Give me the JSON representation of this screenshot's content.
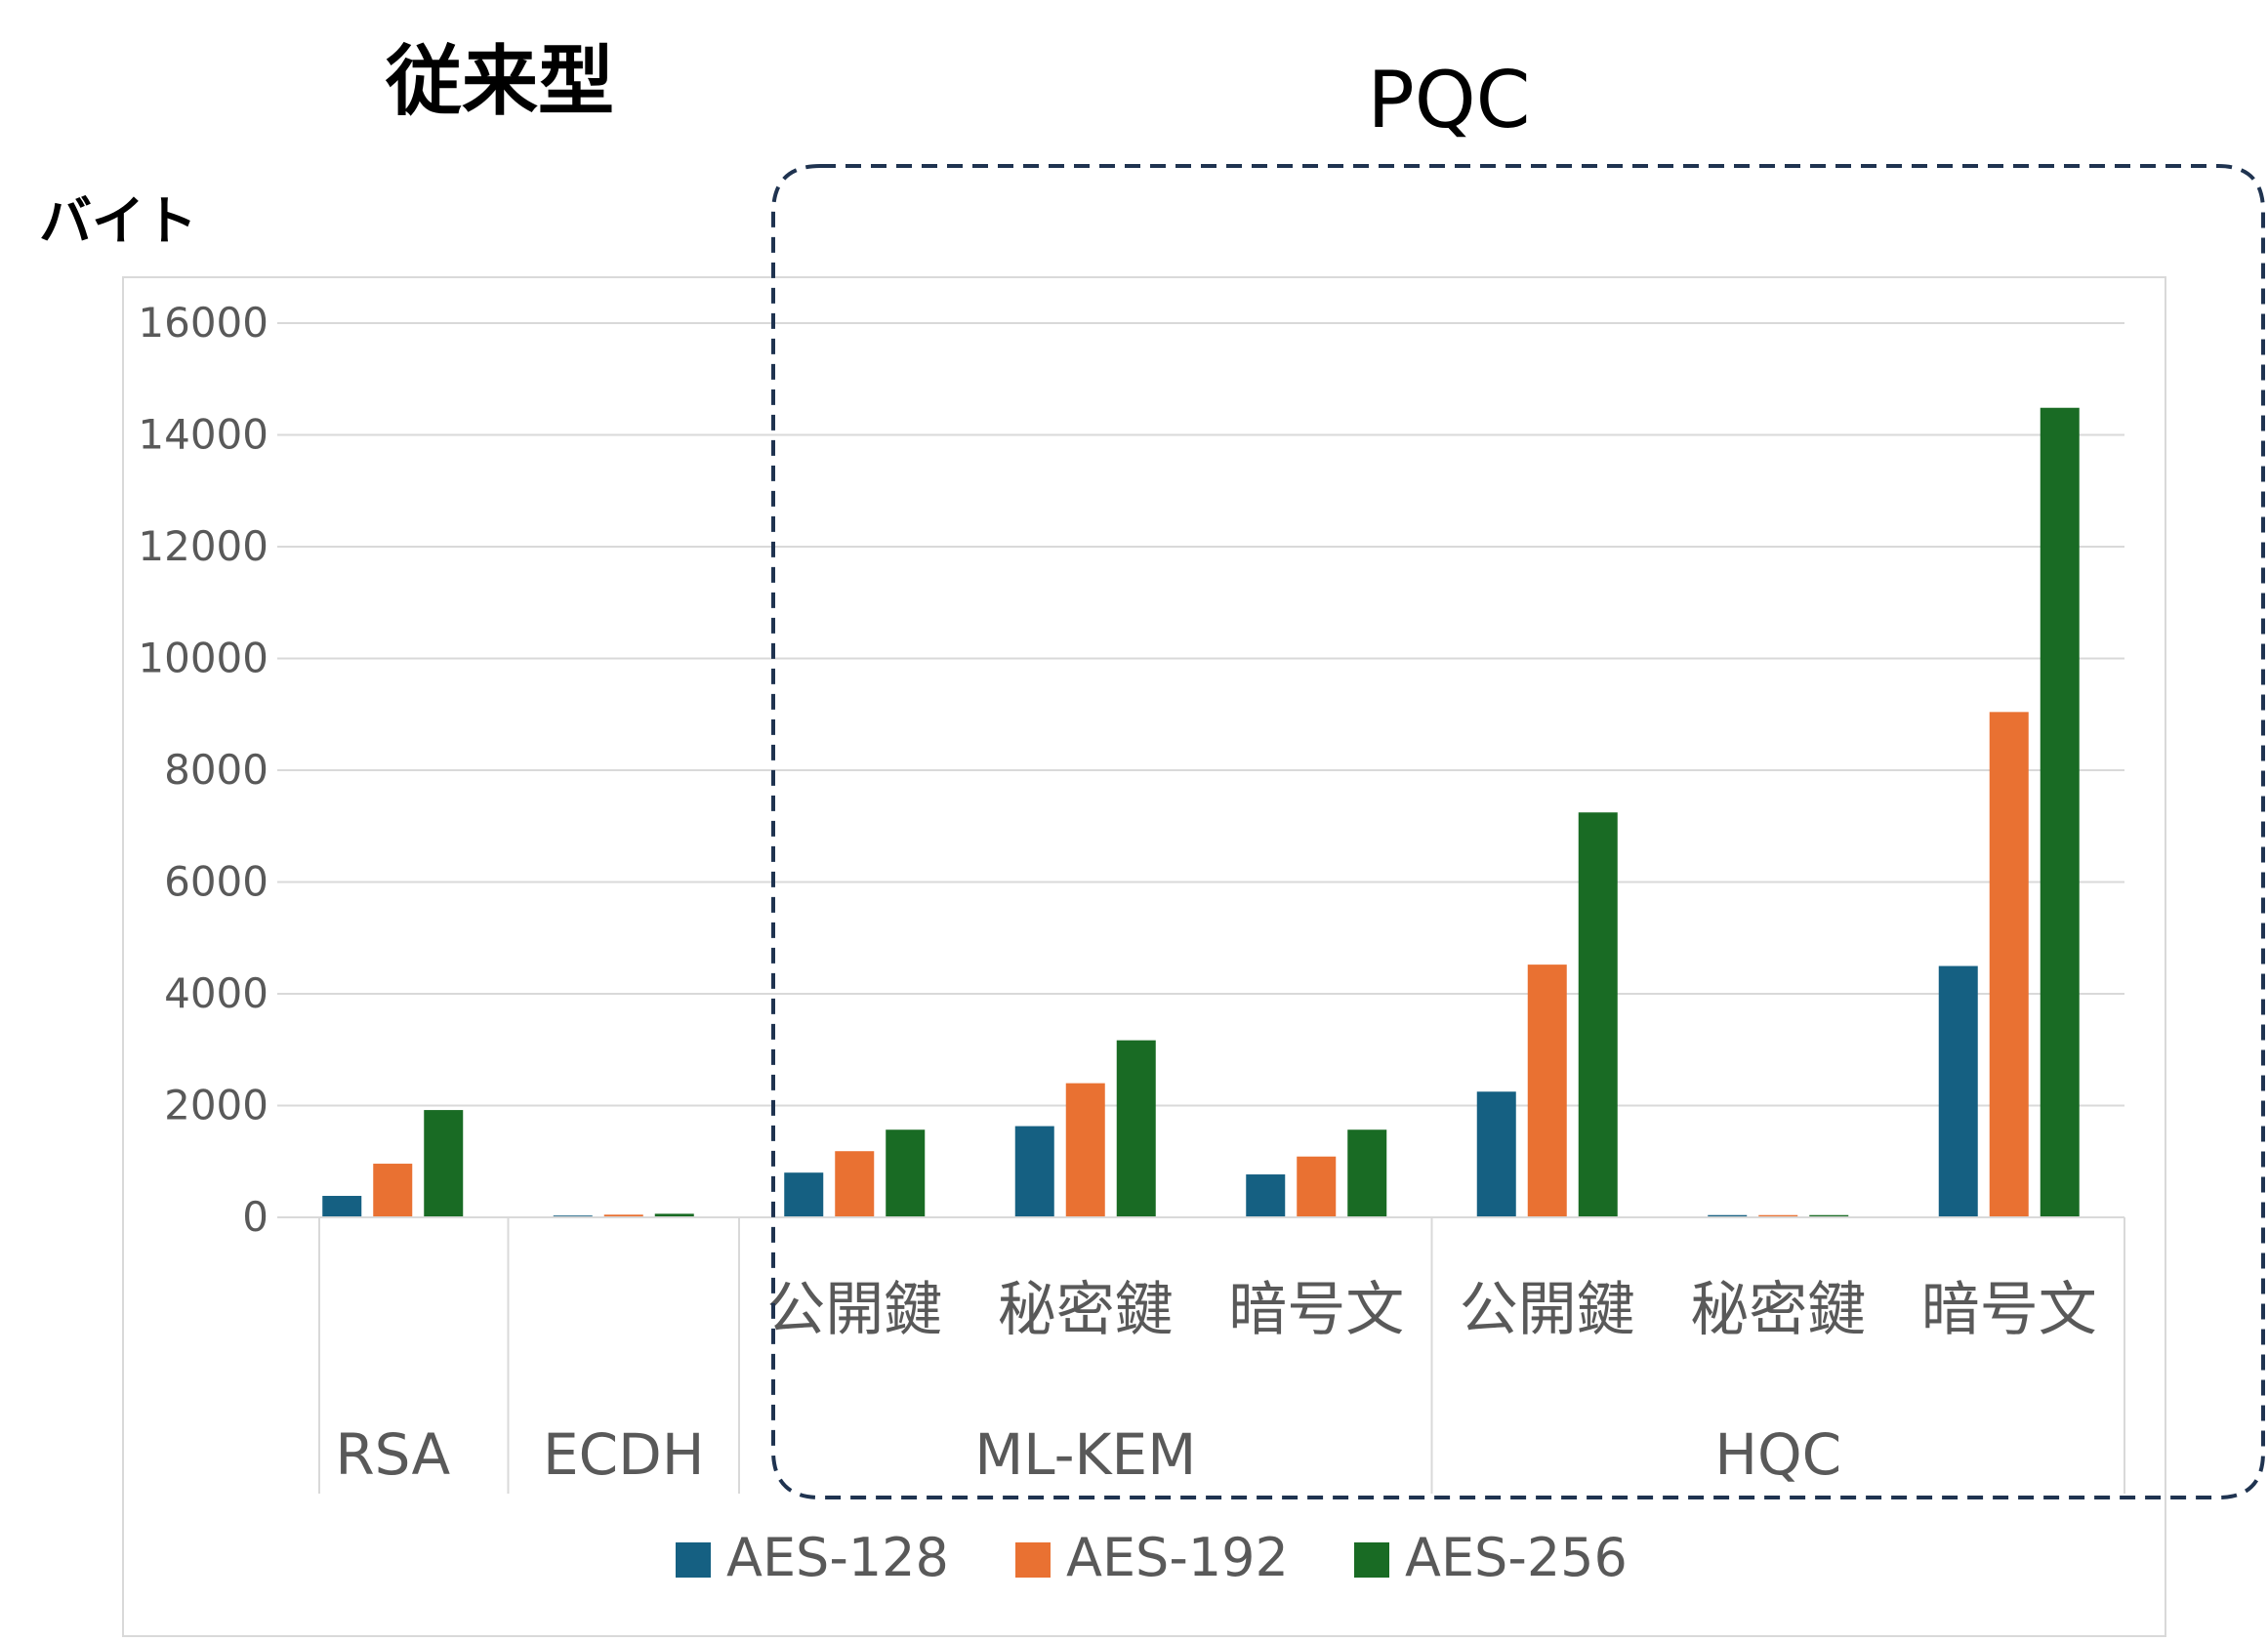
{
  "chart_data": {
    "type": "bar",
    "annotations": {
      "conventional_label": "従来型",
      "pqc_label": "PQC"
    },
    "ylabel": "バイト",
    "ylim": [
      0,
      16000
    ],
    "yticks": [
      "0",
      "2000",
      "4000",
      "6000",
      "8000",
      "10000",
      "12000",
      "14000",
      "16000"
    ],
    "grid": true,
    "legend_position": "bottom",
    "groups": [
      {
        "label": "RSA",
        "categories": [
          ""
        ]
      },
      {
        "label": "ECDH",
        "categories": [
          ""
        ]
      },
      {
        "label": "ML-KEM",
        "categories": [
          "公開鍵",
          "秘密鍵",
          "暗号文"
        ]
      },
      {
        "label": "HQC",
        "categories": [
          "公開鍵",
          "秘密鍵",
          "暗号文"
        ]
      }
    ],
    "series": [
      {
        "name": "AES-128",
        "color": "#156082",
        "values": [
          384,
          32,
          800,
          1632,
          768,
          2249,
          40,
          4497
        ]
      },
      {
        "name": "AES-192",
        "color": "#e97132",
        "values": [
          960,
          48,
          1184,
          2400,
          1088,
          4522,
          40,
          9042
        ]
      },
      {
        "name": "AES-256",
        "color": "#196b24",
        "values": [
          1920,
          64,
          1568,
          3168,
          1568,
          7245,
          40,
          14485
        ]
      }
    ]
  }
}
